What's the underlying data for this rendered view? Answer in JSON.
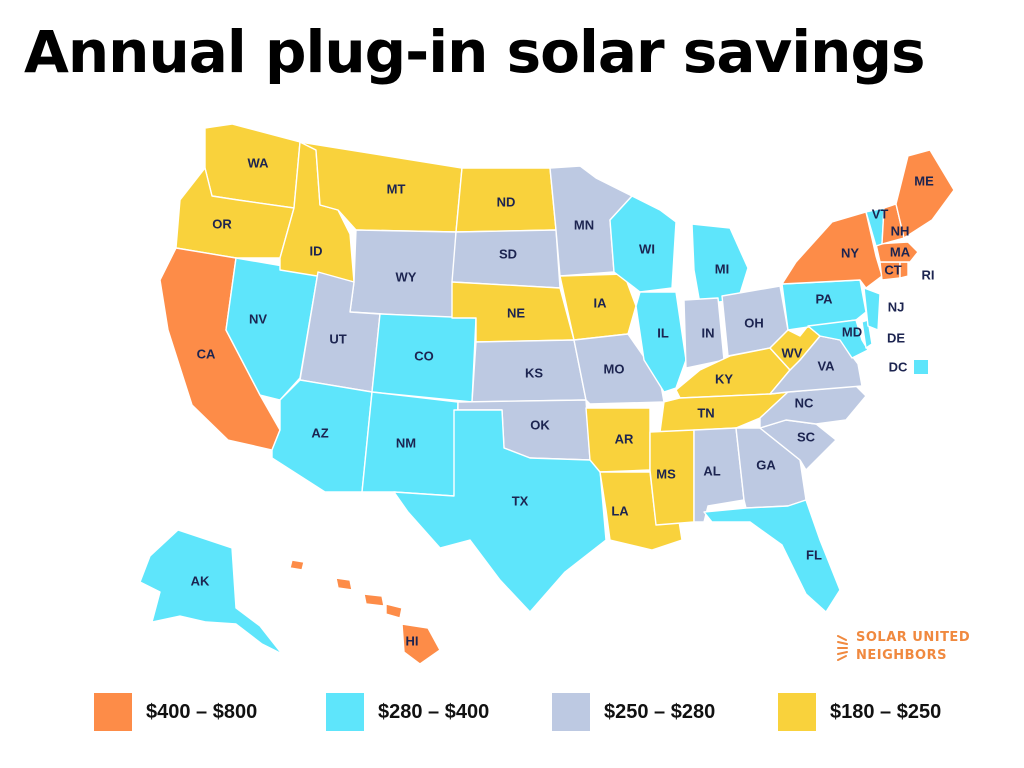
{
  "title": "Annual plug-in solar savings",
  "colors": {
    "tier_400_800": "#fd8c48",
    "tier_280_400": "#5ee5fb",
    "tier_250_280": "#bdc9e2",
    "tier_180_250": "#f9d23c",
    "label_text": "#1c2450"
  },
  "legend": [
    {
      "label": "$400 – $800",
      "color": "#fd8c48"
    },
    {
      "label": "$280 – $400",
      "color": "#5ee5fb"
    },
    {
      "label": "$250 – $280",
      "color": "#bdc9e2"
    },
    {
      "label": "$180 – $250",
      "color": "#f9d23c"
    }
  ],
  "logo": {
    "line1": "SOLAR UNITED",
    "line2": "NEIGHBORS",
    "icon": "sun-icon"
  },
  "states": {
    "WA": {
      "label": "WA",
      "tier": "tier_180_250"
    },
    "OR": {
      "label": "OR",
      "tier": "tier_180_250"
    },
    "CA": {
      "label": "CA",
      "tier": "tier_400_800"
    },
    "NV": {
      "label": "NV",
      "tier": "tier_280_400"
    },
    "ID": {
      "label": "ID",
      "tier": "tier_180_250"
    },
    "MT": {
      "label": "MT",
      "tier": "tier_180_250"
    },
    "WY": {
      "label": "WY",
      "tier": "tier_250_280"
    },
    "UT": {
      "label": "UT",
      "tier": "tier_250_280"
    },
    "AZ": {
      "label": "AZ",
      "tier": "tier_280_400"
    },
    "CO": {
      "label": "CO",
      "tier": "tier_280_400"
    },
    "NM": {
      "label": "NM",
      "tier": "tier_280_400"
    },
    "ND": {
      "label": "ND",
      "tier": "tier_180_250"
    },
    "SD": {
      "label": "SD",
      "tier": "tier_250_280"
    },
    "NE": {
      "label": "NE",
      "tier": "tier_180_250"
    },
    "KS": {
      "label": "KS",
      "tier": "tier_250_280"
    },
    "OK": {
      "label": "OK",
      "tier": "tier_250_280"
    },
    "TX": {
      "label": "TX",
      "tier": "tier_280_400"
    },
    "MN": {
      "label": "MN",
      "tier": "tier_250_280"
    },
    "IA": {
      "label": "IA",
      "tier": "tier_180_250"
    },
    "MO": {
      "label": "MO",
      "tier": "tier_250_280"
    },
    "AR": {
      "label": "AR",
      "tier": "tier_180_250"
    },
    "LA": {
      "label": "LA",
      "tier": "tier_180_250"
    },
    "WI": {
      "label": "WI",
      "tier": "tier_280_400"
    },
    "IL": {
      "label": "IL",
      "tier": "tier_280_400"
    },
    "MI": {
      "label": "MI",
      "tier": "tier_280_400"
    },
    "IN": {
      "label": "IN",
      "tier": "tier_250_280"
    },
    "OH": {
      "label": "OH",
      "tier": "tier_250_280"
    },
    "KY": {
      "label": "KY",
      "tier": "tier_180_250"
    },
    "TN": {
      "label": "TN",
      "tier": "tier_180_250"
    },
    "MS": {
      "label": "MS",
      "tier": "tier_180_250"
    },
    "AL": {
      "label": "AL",
      "tier": "tier_250_280"
    },
    "GA": {
      "label": "GA",
      "tier": "tier_250_280"
    },
    "FL": {
      "label": "FL",
      "tier": "tier_280_400"
    },
    "SC": {
      "label": "SC",
      "tier": "tier_250_280"
    },
    "NC": {
      "label": "NC",
      "tier": "tier_250_280"
    },
    "VA": {
      "label": "VA",
      "tier": "tier_250_280"
    },
    "WV": {
      "label": "WV",
      "tier": "tier_180_250"
    },
    "PA": {
      "label": "PA",
      "tier": "tier_280_400"
    },
    "MD": {
      "label": "MD",
      "tier": "tier_280_400"
    },
    "DE": {
      "label": "DE",
      "tier": "tier_280_400"
    },
    "NJ": {
      "label": "NJ",
      "tier": "tier_280_400"
    },
    "NY": {
      "label": "NY",
      "tier": "tier_400_800"
    },
    "CT": {
      "label": "CT",
      "tier": "tier_400_800"
    },
    "RI": {
      "label": "RI",
      "tier": "tier_400_800"
    },
    "MA": {
      "label": "MA",
      "tier": "tier_400_800"
    },
    "VT": {
      "label": "VT",
      "tier": "tier_280_400"
    },
    "NH": {
      "label": "NH",
      "tier": "tier_400_800"
    },
    "ME": {
      "label": "ME",
      "tier": "tier_400_800"
    },
    "DC": {
      "label": "DC",
      "tier": "tier_280_400"
    },
    "AK": {
      "label": "AK",
      "tier": "tier_280_400"
    },
    "HI": {
      "label": "HI",
      "tier": "tier_400_800"
    }
  }
}
